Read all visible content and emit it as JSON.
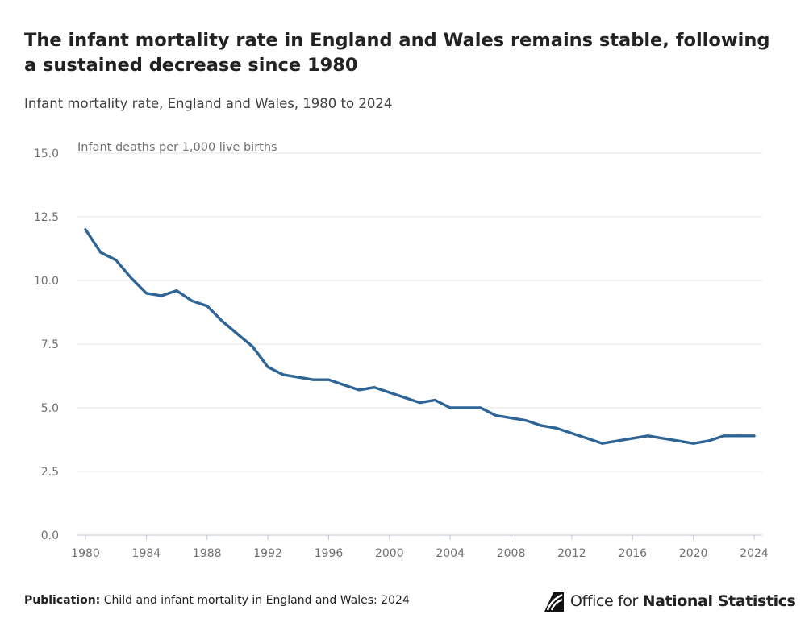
{
  "title": "The infant mortality rate in England and Wales remains stable, following a sustained decrease since 1980",
  "subtitle": "Infant mortality rate, England and Wales, 1980 to 2024",
  "footer": {
    "publication_label": "Publication:",
    "publication_title": "Child and infant mortality in England and Wales: 2024"
  },
  "logo": {
    "text_regular": "Office for ",
    "text_bold": "National Statistics",
    "icon": "ons-logo-icon"
  },
  "colors": {
    "line": "#2e6496",
    "grid": "#e6e6e6",
    "axis": "#b8c6d6",
    "tick_text": "#707070"
  },
  "chart_data": {
    "type": "line",
    "ylabel": "Infant deaths per 1,000 live births",
    "xlim": [
      1980,
      2024
    ],
    "ylim": [
      0,
      15
    ],
    "y_ticks": [
      "0.0",
      "2.5",
      "5.0",
      "7.5",
      "10.0",
      "12.5",
      "15.0"
    ],
    "x_ticks": [
      "1980",
      "1984",
      "1988",
      "1992",
      "1996",
      "2000",
      "2004",
      "2008",
      "2012",
      "2016",
      "2020",
      "2024"
    ],
    "grid": true,
    "series": [
      {
        "x": [
          1980,
          1981,
          1982,
          1983,
          1984,
          1985,
          1986,
          1987,
          1988,
          1989,
          1990,
          1991,
          1992,
          1993,
          1994,
          1995,
          1996,
          1997,
          1998,
          1999,
          2000,
          2001,
          2002,
          2003,
          2004,
          2005,
          2006,
          2007,
          2008,
          2009,
          2010,
          2011,
          2012,
          2013,
          2014,
          2015,
          2016,
          2017,
          2018,
          2019,
          2020,
          2021,
          2022,
          2023,
          2024
        ],
        "values": [
          12.0,
          11.1,
          10.8,
          10.1,
          9.5,
          9.4,
          9.6,
          9.2,
          9.0,
          8.4,
          7.9,
          7.4,
          6.6,
          6.3,
          6.2,
          6.1,
          6.1,
          5.9,
          5.7,
          5.8,
          5.6,
          5.4,
          5.2,
          5.3,
          5.0,
          5.0,
          5.0,
          4.7,
          4.6,
          4.5,
          4.3,
          4.2,
          4.0,
          3.8,
          3.6,
          3.7,
          3.8,
          3.9,
          3.8,
          3.7,
          3.6,
          3.7,
          3.9,
          3.9,
          3.9
        ]
      }
    ]
  }
}
